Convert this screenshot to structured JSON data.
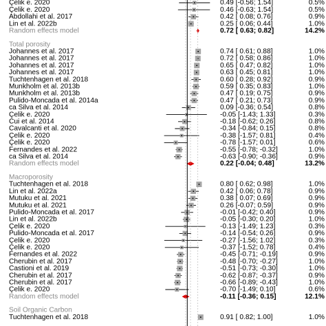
{
  "chart_data": {
    "type": "forest",
    "xlim": [
      -1.6,
      1.2
    ],
    "groups": [
      {
        "name": "",
        "studies": [
          {
            "label": "Çelik e. 2020",
            "est": 0.49,
            "lo": -0.56,
            "hi": 1.54,
            "weight": "0.5%",
            "text": "0.49 [-0.56;  1.54]"
          },
          {
            "label": "Çelik e. 2020",
            "est": 0.46,
            "lo": -0.63,
            "hi": 1.54,
            "weight": "0.5%",
            "text": "0.46 [-0.63;  1.54]"
          },
          {
            "label": "Abdollahi et al. 2017",
            "est": 0.42,
            "lo": 0.08,
            "hi": 0.76,
            "weight": "0.9%",
            "text": "0.42 [ 0.08;  0.76]"
          },
          {
            "label": "Lin et al. 2022b",
            "est": 0.25,
            "lo": 0.06,
            "hi": 0.44,
            "weight": "1.0%",
            "text": "0.25 [ 0.06;  0.44]"
          }
        ],
        "pooled": {
          "label": "Random effects model",
          "est": 0.72,
          "lo": 0.63,
          "hi": 0.82,
          "weight": "14.2%",
          "text": "0.72 [ 0.63;  0.82]"
        }
      },
      {
        "name": "Total porosity",
        "studies": [
          {
            "label": "Johannes et al. 2017",
            "est": 0.74,
            "lo": 0.61,
            "hi": 0.88,
            "weight": "1.0%",
            "text": "0.74 [ 0.61;  0.88]"
          },
          {
            "label": "Johannes et al. 2017",
            "est": 0.72,
            "lo": 0.58,
            "hi": 0.86,
            "weight": "1.0%",
            "text": "0.72 [ 0.58;  0.86]"
          },
          {
            "label": "Johannes et al. 2017",
            "est": 0.65,
            "lo": 0.47,
            "hi": 0.82,
            "weight": "1.0%",
            "text": "0.65 [ 0.47;  0.82]"
          },
          {
            "label": "Johannes et al. 2017",
            "est": 0.63,
            "lo": 0.45,
            "hi": 0.81,
            "weight": "1.0%",
            "text": "0.63 [ 0.45;  0.81]"
          },
          {
            "label": "Tuchtenhagen  et al. 2018",
            "est": 0.6,
            "lo": 0.28,
            "hi": 0.92,
            "weight": "0.9%",
            "text": "0.60 [ 0.28;  0.92]"
          },
          {
            "label": "Munkholm et al. 2013b",
            "est": 0.59,
            "lo": 0.35,
            "hi": 0.83,
            "weight": "1.0%",
            "text": "0.59 [ 0.35;  0.83]"
          },
          {
            "label": "Munkholm et al. 2013b",
            "est": 0.47,
            "lo": 0.19,
            "hi": 0.75,
            "weight": "0.9%",
            "text": "0.47 [ 0.19;  0.75]"
          },
          {
            "label": "Pulido-Moncada et al. 2014a",
            "est": 0.47,
            "lo": 0.21,
            "hi": 0.73,
            "weight": "0.9%",
            "text": "0.47 [ 0.21;  0.73]"
          },
          {
            "label": "ca Silva et al. 2014",
            "est": 0.09,
            "lo": -0.36,
            "hi": 0.54,
            "weight": "0.8%",
            "text": "0.09 [-0.36;  0.54]"
          },
          {
            "label": "Çelik e. 2020",
            "est": -0.05,
            "lo": -1.43,
            "hi": 1.33,
            "weight": "0.3%",
            "text": "-0.05 [-1.43;  1.33]"
          },
          {
            "label": "Cui et al. 2014",
            "est": -0.18,
            "lo": -0.62,
            "hi": 0.26,
            "weight": "0.8%",
            "text": "-0.18 [-0.62;  0.26]"
          },
          {
            "label": "Cavalcanti et al. 2020",
            "est": -0.34,
            "lo": -0.84,
            "hi": 0.15,
            "weight": "0.8%",
            "text": "-0.34 [-0.84;  0.15]"
          },
          {
            "label": "Çelik e. 2020",
            "est": -0.38,
            "lo": -1.57,
            "hi": 0.81,
            "weight": "0.4%",
            "text": "-0.38 [-1.57;  0.81]"
          },
          {
            "label": "Çelik e. 2020",
            "est": -0.78,
            "lo": -1.57,
            "hi": 0.01,
            "weight": "0.6%",
            "text": "-0.78 [-1.57;  0.01]"
          },
          {
            "label": "Fernandes et al. 2022",
            "est": -0.55,
            "lo": -0.78,
            "hi": -0.32,
            "weight": "1.0%",
            "text": "-0.55 [-0.78; -0.32]"
          },
          {
            "label": "ca Silva et al. 2014",
            "est": -0.63,
            "lo": -0.9,
            "hi": -0.36,
            "weight": "0.9%",
            "text": "-0.63 [-0.90; -0.36]"
          }
        ],
        "pooled": {
          "label": "Random effects model",
          "est": 0.22,
          "lo": -0.04,
          "hi": 0.48,
          "weight": "13.2%",
          "text": "0.22 [-0.04;  0.48]"
        }
      },
      {
        "name": "Macroporosity",
        "studies": [
          {
            "label": "Tuchtenhagen  et al. 2018",
            "est": 0.8,
            "lo": 0.62,
            "hi": 0.98,
            "weight": "1.0%",
            "text": "0.80 [ 0.62;  0.98]"
          },
          {
            "label": "Lin et al. 2022a",
            "est": 0.42,
            "lo": 0.06,
            "hi": 0.78,
            "weight": "0.9%",
            "text": "0.42 [ 0.06;  0.78]"
          },
          {
            "label": "Mutuku et al. 2021",
            "est": 0.38,
            "lo": 0.07,
            "hi": 0.69,
            "weight": "0.9%",
            "text": "0.38 [ 0.07;  0.69]"
          },
          {
            "label": "Mutuku et al. 2021",
            "est": 0.26,
            "lo": -0.07,
            "hi": 0.59,
            "weight": "0.9%",
            "text": "0.26 [-0.07;  0.59]"
          },
          {
            "label": "Pulido-Moncada et al. 2017",
            "est": -0.01,
            "lo": -0.42,
            "hi": 0.4,
            "weight": "0.9%",
            "text": "-0.01 [-0.42;  0.40]"
          },
          {
            "label": "Lin et al. 2022b",
            "est": -0.05,
            "lo": -0.3,
            "hi": 0.2,
            "weight": "1.0%",
            "text": "-0.05 [-0.30;  0.20]"
          },
          {
            "label": "Çelik e. 2020",
            "est": -0.13,
            "lo": -1.49,
            "hi": 1.23,
            "weight": "0.3%",
            "text": "-0.13 [-1.49;  1.23]"
          },
          {
            "label": "Pulido-Moncada et al. 2017",
            "est": -0.14,
            "lo": -0.54,
            "hi": 0.26,
            "weight": "0.9%",
            "text": "-0.14 [-0.54;  0.26]"
          },
          {
            "label": "Çelik e. 2020",
            "est": -0.27,
            "lo": -1.56,
            "hi": 1.02,
            "weight": "0.3%",
            "text": "-0.27 [-1.56;  1.02]"
          },
          {
            "label": "Çelik e. 2020",
            "est": -0.37,
            "lo": -1.52,
            "hi": 0.78,
            "weight": "0.4%",
            "text": "-0.37 [-1.52;  0.78]"
          },
          {
            "label": "Fernandes et al. 2022",
            "est": -0.45,
            "lo": -0.71,
            "hi": -0.19,
            "weight": "0.9%",
            "text": "-0.45 [-0.71; -0.19]"
          },
          {
            "label": "Cherubin et al. 2017",
            "est": -0.48,
            "lo": -0.7,
            "hi": -0.27,
            "weight": "1.0%",
            "text": "-0.48 [-0.70; -0.27]"
          },
          {
            "label": "Castioni et al. 2019",
            "est": -0.51,
            "lo": -0.73,
            "hi": -0.3,
            "weight": "1.0%",
            "text": "-0.51 [-0.73; -0.30]"
          },
          {
            "label": "Cherubin et al. 2017",
            "est": -0.62,
            "lo": -0.87,
            "hi": -0.37,
            "weight": "0.9%",
            "text": "-0.62 [-0.87; -0.37]"
          },
          {
            "label": "Cherubin et al. 2017",
            "est": -0.66,
            "lo": -0.89,
            "hi": -0.43,
            "weight": "1.0%",
            "text": "-0.66 [-0.89; -0.43]"
          },
          {
            "label": "Çelik e. 2020",
            "est": -0.7,
            "lo": -1.49,
            "hi": 0.1,
            "weight": "0.6%",
            "text": "-0.70 [-1.49;  0.10]"
          }
        ],
        "pooled": {
          "label": "Random effects model",
          "est": -0.11,
          "lo": -0.36,
          "hi": 0.15,
          "weight": "12.1%",
          "text": "-0.11 [-0.36;  0.15]"
        }
      },
      {
        "name": "Soil Organic Carbon",
        "studies": [
          {
            "label": "Tuchtenhagen  et al. 2018",
            "est": 0.91,
            "lo": 0.82,
            "hi": 1.0,
            "weight": "1.0%",
            "text": "0.91 [ 0.82;  1.00]"
          }
        ],
        "pooled": null
      }
    ],
    "colors": {
      "square": "#a6a6a6",
      "diamond": "#dd0000",
      "header": "#8a8a8a",
      "line": "#000000"
    }
  }
}
